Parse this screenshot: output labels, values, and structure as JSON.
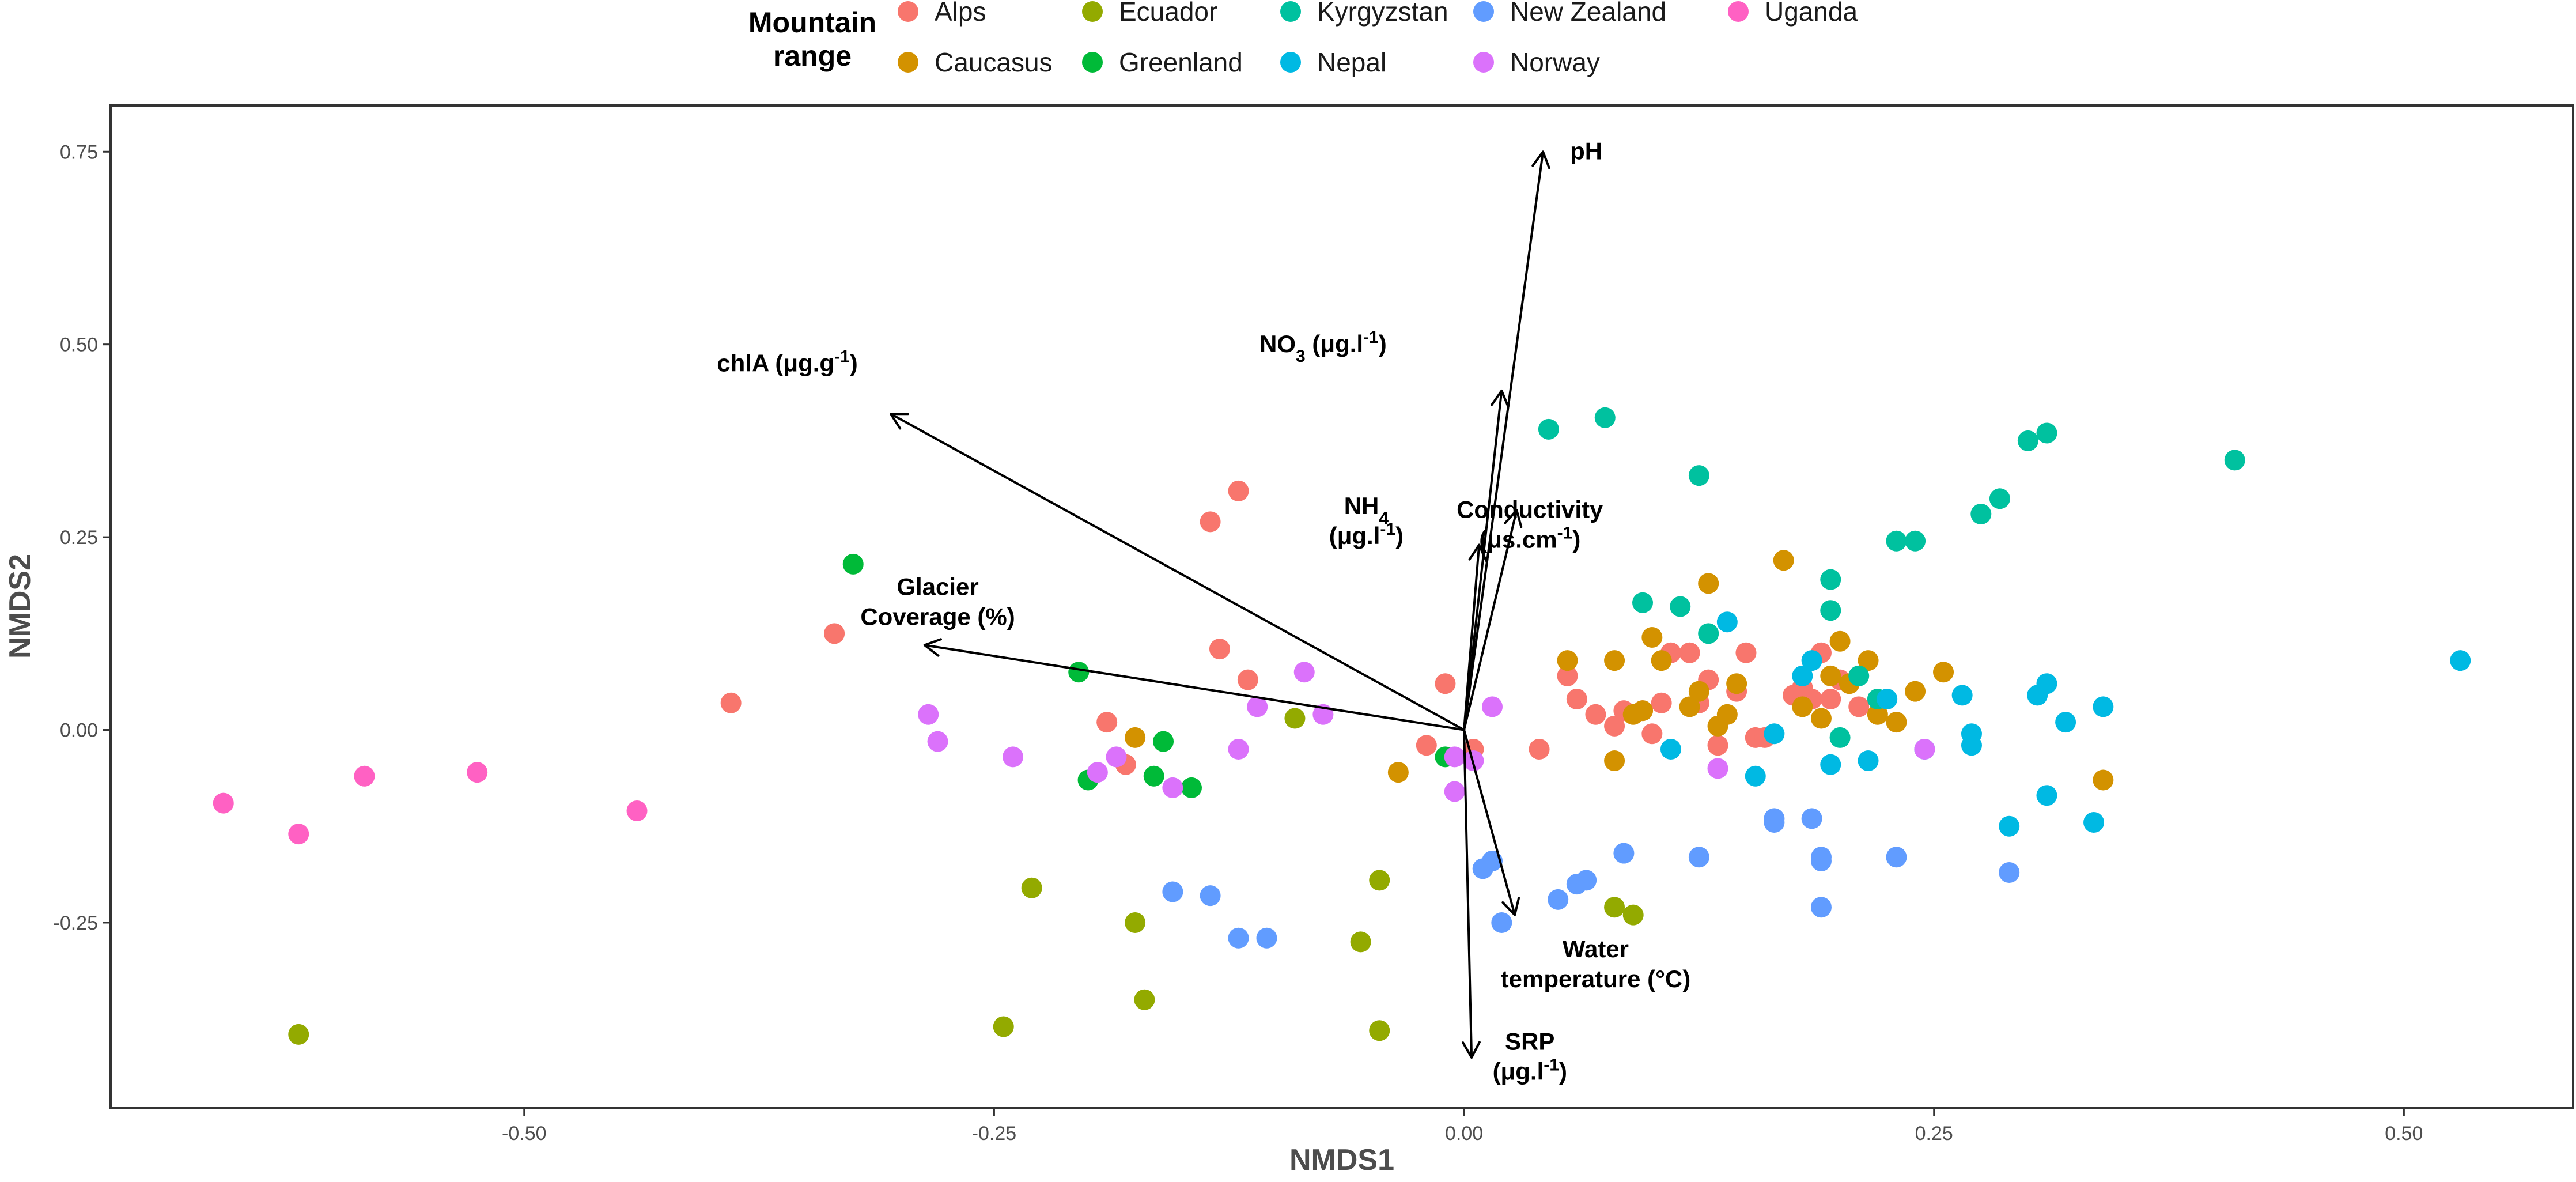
{
  "chart_data": {
    "type": "scatter",
    "title": "",
    "xlabel": "NMDS1",
    "ylabel": "NMDS2",
    "xlim": [
      -0.72,
      0.59
    ],
    "ylim": [
      -0.49,
      0.81
    ],
    "x_ticks": [
      -0.5,
      -0.25,
      0.0,
      0.25,
      0.5
    ],
    "x_tick_labels": [
      "-0.50",
      "-0.25",
      "0.00",
      "0.25",
      "0.50"
    ],
    "y_ticks": [
      -0.25,
      0.0,
      0.25,
      0.5,
      0.75
    ],
    "y_tick_labels": [
      "-0.25",
      "0.00",
      "0.25",
      "0.50",
      "0.75"
    ],
    "grid": false,
    "legend": {
      "title_lines": [
        "Mountain",
        "range"
      ],
      "placement": "top",
      "entries": [
        "Alps",
        "Caucasus",
        "Ecuador",
        "Greenland",
        "Kyrgyzstan",
        "Nepal",
        "New Zealand",
        "Norway",
        "Uganda"
      ]
    },
    "colors": {
      "Alps": "#F8766D",
      "Caucasus": "#D39200",
      "Ecuador": "#93AA00",
      "Greenland": "#00BA38",
      "Kyrgyzstan": "#00C19F",
      "Nepal": "#00B9E3",
      "New Zealand": "#619CFF",
      "Norway": "#DB72FB",
      "Uganda": "#FF61C3"
    },
    "series": [
      {
        "name": "Alps",
        "points": [
          [
            -0.39,
            0.035
          ],
          [
            -0.335,
            0.125
          ],
          [
            -0.12,
            0.31
          ],
          [
            -0.135,
            0.27
          ],
          [
            -0.13,
            0.105
          ],
          [
            -0.115,
            0.065
          ],
          [
            -0.19,
            0.01
          ],
          [
            -0.18,
            -0.045
          ],
          [
            -0.01,
            0.06
          ],
          [
            -0.02,
            -0.02
          ],
          [
            0.005,
            -0.025
          ],
          [
            0.04,
            -0.025
          ],
          [
            0.055,
            0.07
          ],
          [
            0.06,
            0.04
          ],
          [
            0.07,
            0.02
          ],
          [
            0.08,
            0.005
          ],
          [
            0.085,
            0.025
          ],
          [
            0.095,
            0.025
          ],
          [
            0.105,
            0.035
          ],
          [
            0.11,
            0.1
          ],
          [
            0.12,
            0.1
          ],
          [
            0.125,
            0.035
          ],
          [
            0.13,
            0.065
          ],
          [
            0.135,
            -0.02
          ],
          [
            0.145,
            0.05
          ],
          [
            0.15,
            0.1
          ],
          [
            0.155,
            -0.01
          ],
          [
            0.16,
            -0.01
          ],
          [
            0.175,
            0.045
          ],
          [
            0.18,
            0.055
          ],
          [
            0.185,
            0.04
          ],
          [
            0.19,
            0.1
          ],
          [
            0.195,
            0.04
          ],
          [
            0.2,
            0.065
          ],
          [
            0.21,
            0.03
          ],
          [
            0.1,
            -0.005
          ]
        ]
      },
      {
        "name": "Caucasus",
        "points": [
          [
            -0.175,
            -0.01
          ],
          [
            -0.035,
            -0.055
          ],
          [
            0.055,
            0.09
          ],
          [
            0.08,
            0.09
          ],
          [
            0.08,
            -0.04
          ],
          [
            0.09,
            0.02
          ],
          [
            0.095,
            0.025
          ],
          [
            0.1,
            0.12
          ],
          [
            0.105,
            0.09
          ],
          [
            0.12,
            0.03
          ],
          [
            0.125,
            0.05
          ],
          [
            0.13,
            0.19
          ],
          [
            0.135,
            0.005
          ],
          [
            0.14,
            0.02
          ],
          [
            0.145,
            0.06
          ],
          [
            0.17,
            0.22
          ],
          [
            0.18,
            0.03
          ],
          [
            0.19,
            0.015
          ],
          [
            0.195,
            0.07
          ],
          [
            0.2,
            0.115
          ],
          [
            0.205,
            0.06
          ],
          [
            0.215,
            0.09
          ],
          [
            0.22,
            0.02
          ],
          [
            0.23,
            0.01
          ],
          [
            0.24,
            0.05
          ],
          [
            0.255,
            0.075
          ],
          [
            0.34,
            -0.065
          ]
        ]
      },
      {
        "name": "Ecuador",
        "points": [
          [
            -0.62,
            -0.395
          ],
          [
            -0.23,
            -0.205
          ],
          [
            -0.245,
            -0.385
          ],
          [
            -0.175,
            -0.25
          ],
          [
            -0.17,
            -0.35
          ],
          [
            -0.09,
            0.015
          ],
          [
            -0.055,
            -0.275
          ],
          [
            -0.045,
            -0.195
          ],
          [
            -0.045,
            -0.39
          ],
          [
            0.08,
            -0.23
          ],
          [
            0.09,
            -0.24
          ]
        ]
      },
      {
        "name": "Greenland",
        "points": [
          [
            -0.325,
            0.215
          ],
          [
            -0.205,
            0.075
          ],
          [
            -0.2,
            -0.065
          ],
          [
            -0.16,
            -0.015
          ],
          [
            -0.165,
            -0.06
          ],
          [
            -0.145,
            -0.075
          ],
          [
            -0.01,
            -0.035
          ]
        ]
      },
      {
        "name": "Kyrgyzstan",
        "points": [
          [
            0.045,
            0.39
          ],
          [
            0.075,
            0.405
          ],
          [
            0.095,
            0.165
          ],
          [
            0.115,
            0.16
          ],
          [
            0.125,
            0.33
          ],
          [
            0.13,
            0.125
          ],
          [
            0.195,
            0.195
          ],
          [
            0.195,
            0.155
          ],
          [
            0.2,
            -0.01
          ],
          [
            0.21,
            0.07
          ],
          [
            0.22,
            0.04
          ],
          [
            0.23,
            0.245
          ],
          [
            0.24,
            0.245
          ],
          [
            0.275,
            0.28
          ],
          [
            0.285,
            0.3
          ],
          [
            0.3,
            0.375
          ],
          [
            0.31,
            0.385
          ],
          [
            0.41,
            0.35
          ]
        ]
      },
      {
        "name": "Nepal",
        "points": [
          [
            0.14,
            0.14
          ],
          [
            0.155,
            -0.06
          ],
          [
            0.165,
            -0.005
          ],
          [
            0.18,
            0.07
          ],
          [
            0.185,
            0.09
          ],
          [
            0.195,
            -0.045
          ],
          [
            0.215,
            -0.04
          ],
          [
            0.225,
            0.04
          ],
          [
            0.245,
            -0.025
          ],
          [
            0.265,
            0.045
          ],
          [
            0.27,
            -0.005
          ],
          [
            0.27,
            -0.02
          ],
          [
            0.29,
            -0.125
          ],
          [
            0.305,
            0.045
          ],
          [
            0.31,
            -0.085
          ],
          [
            0.31,
            0.06
          ],
          [
            0.32,
            0.01
          ],
          [
            0.335,
            -0.12
          ],
          [
            0.34,
            0.03
          ],
          [
            0.53,
            0.09
          ],
          [
            0.11,
            -0.025
          ]
        ]
      },
      {
        "name": "New Zealand",
        "points": [
          [
            -0.155,
            -0.21
          ],
          [
            -0.135,
            -0.215
          ],
          [
            -0.12,
            -0.27
          ],
          [
            -0.105,
            -0.27
          ],
          [
            0.01,
            -0.18
          ],
          [
            0.015,
            -0.17
          ],
          [
            0.02,
            -0.25
          ],
          [
            0.05,
            -0.22
          ],
          [
            0.06,
            -0.2
          ],
          [
            0.065,
            -0.195
          ],
          [
            0.085,
            -0.16
          ],
          [
            0.125,
            -0.165
          ],
          [
            0.165,
            -0.115
          ],
          [
            0.165,
            -0.12
          ],
          [
            0.185,
            -0.115
          ],
          [
            0.19,
            -0.17
          ],
          [
            0.19,
            -0.165
          ],
          [
            0.19,
            -0.23
          ],
          [
            0.23,
            -0.165
          ],
          [
            0.29,
            -0.185
          ]
        ]
      },
      {
        "name": "Norway",
        "points": [
          [
            -0.285,
            0.02
          ],
          [
            -0.28,
            -0.015
          ],
          [
            -0.24,
            -0.035
          ],
          [
            -0.195,
            -0.055
          ],
          [
            -0.185,
            -0.035
          ],
          [
            -0.155,
            -0.075
          ],
          [
            -0.12,
            -0.025
          ],
          [
            -0.11,
            0.03
          ],
          [
            -0.085,
            0.075
          ],
          [
            -0.075,
            0.02
          ],
          [
            -0.005,
            -0.035
          ],
          [
            -0.005,
            -0.08
          ],
          [
            0.005,
            -0.04
          ],
          [
            0.015,
            0.03
          ],
          [
            0.135,
            -0.05
          ],
          [
            0.245,
            -0.025
          ]
        ]
      },
      {
        "name": "Uganda",
        "points": [
          [
            -0.66,
            -0.095
          ],
          [
            -0.62,
            -0.135
          ],
          [
            -0.585,
            -0.06
          ],
          [
            -0.525,
            -0.055
          ],
          [
            -0.44,
            -0.105
          ]
        ]
      }
    ],
    "vectors": [
      {
        "name": "pH",
        "end": [
          0.042,
          0.75
        ],
        "label_lines": [
          "pH"
        ],
        "label_at": [
          0.065,
          0.74
        ]
      },
      {
        "name": "NO3",
        "end": [
          0.02,
          0.44
        ],
        "label_lines": [
          "NO3 (µg.l-1)"
        ],
        "label_at": [
          -0.075,
          0.49
        ]
      },
      {
        "name": "NH4",
        "end": [
          0.008,
          0.24
        ],
        "label_lines": [
          "NH4",
          "(µg.l-1)"
        ],
        "label_at": [
          -0.052,
          0.28
        ]
      },
      {
        "name": "Conductivity",
        "end": [
          0.028,
          0.285
        ],
        "label_lines": [
          "Conductivity",
          "(µs.cm-1)"
        ],
        "label_at": [
          0.035,
          0.275
        ]
      },
      {
        "name": "chlA",
        "end": [
          -0.305,
          0.41
        ],
        "label_lines": [
          "chlA (µg.g-1)"
        ],
        "label_at": [
          -0.36,
          0.465
        ]
      },
      {
        "name": "Glacier Coverage",
        "end": [
          -0.287,
          0.11
        ],
        "label_lines": [
          "Glacier",
          "Coverage (%)"
        ],
        "label_at": [
          -0.28,
          0.175
        ]
      },
      {
        "name": "Water temperature",
        "end": [
          0.027,
          -0.24
        ],
        "label_lines": [
          "Water",
          "temperature (°C)"
        ],
        "label_at": [
          0.07,
          -0.295
        ]
      },
      {
        "name": "SRP",
        "end": [
          0.004,
          -0.425
        ],
        "label_lines": [
          "SRP",
          "(µg.l-1)"
        ],
        "label_at": [
          0.035,
          -0.415
        ]
      }
    ],
    "vector_origin": [
      0.0,
      0.0
    ],
    "vector_label_parts": {
      "pH": [
        [
          {
            "t": "pH"
          }
        ]
      ],
      "NO3": [
        [
          {
            "t": "NO"
          },
          {
            "t": "3",
            "sub": true
          },
          {
            "t": " (μg.l"
          },
          {
            "t": "-1",
            "sup": true
          },
          {
            "t": ")"
          }
        ]
      ],
      "NH4": [
        [
          {
            "t": "NH"
          },
          {
            "t": "4",
            "sub": true
          }
        ],
        [
          {
            "t": "(μg.l"
          },
          {
            "t": "-1",
            "sup": true
          },
          {
            "t": ")"
          }
        ]
      ],
      "Conductivity": [
        [
          {
            "t": "Conductivity"
          }
        ],
        [
          {
            "t": "(μs.cm"
          },
          {
            "t": "-1",
            "sup": true
          },
          {
            "t": ")"
          }
        ]
      ],
      "chlA": [
        [
          {
            "t": "chlA (μg.g"
          },
          {
            "t": "-1",
            "sup": true
          },
          {
            "t": ")"
          }
        ]
      ],
      "Glacier Coverage": [
        [
          {
            "t": "Glacier"
          }
        ],
        [
          {
            "t": "Coverage (%)"
          }
        ]
      ],
      "Water temperature": [
        [
          {
            "t": "Water"
          }
        ],
        [
          {
            "t": "temperature (°C)"
          }
        ]
      ],
      "SRP": [
        [
          {
            "t": "SRP"
          }
        ],
        [
          {
            "t": "(μg.l"
          },
          {
            "t": "-1",
            "sup": true
          },
          {
            "t": ")"
          }
        ]
      ]
    }
  }
}
